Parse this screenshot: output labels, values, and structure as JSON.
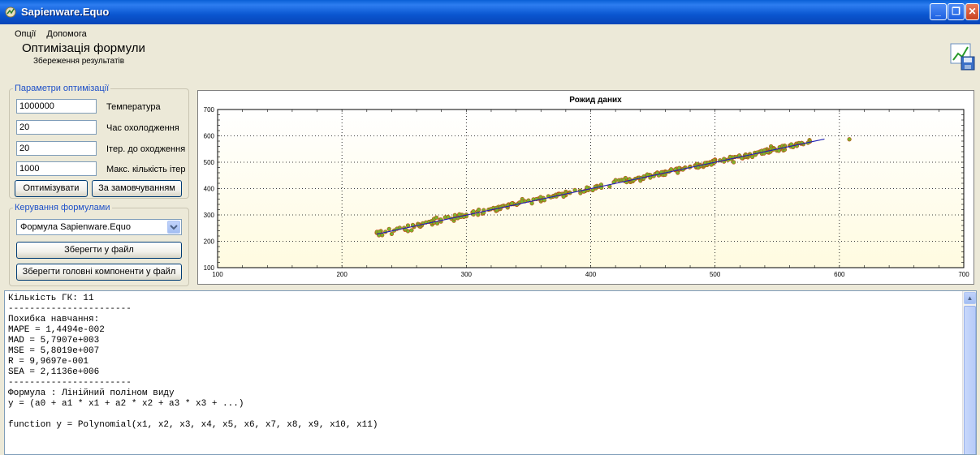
{
  "window": {
    "title": "Sapienware.Equo",
    "minimize": "_",
    "maximize": "❐",
    "close": "✕"
  },
  "menu": [
    "Опції",
    "Допомога"
  ],
  "header": {
    "title": "Оптимізація формули",
    "subtitle": "Збереження результатів",
    "icon": "chart-save-icon"
  },
  "params": {
    "legend": "Параметри оптимізації",
    "fields": [
      {
        "value": "1000000",
        "label": "Температура"
      },
      {
        "value": "20",
        "label": "Час охолодження"
      },
      {
        "value": "20",
        "label": "Ітер. до оходження"
      },
      {
        "value": "1000",
        "label": "Макс. кількість ітер"
      }
    ],
    "optimize_btn": "Оптимізувати",
    "default_btn": "За замовчуванням"
  },
  "formulas": {
    "legend": "Керування формулами",
    "selected": "Формула Sapienware.Equo",
    "save_btn": "Зберегти у файл",
    "save_pc_btn": "Зберегти головні компоненти у файл"
  },
  "chart_data": {
    "type": "scatter",
    "title": "Рожид даних",
    "xlim": [
      100,
      700
    ],
    "ylim": [
      100,
      700
    ],
    "xticks": [
      100,
      200,
      300,
      400,
      500,
      600,
      700
    ],
    "yticks": [
      100,
      200,
      300,
      400,
      500,
      600,
      700
    ],
    "grid": true,
    "fit_line": {
      "x": [
        228,
        588
      ],
      "y": [
        227,
        588
      ]
    },
    "points_description": "≈300 points clustered along y = x from ~225 to ~580, plus one outlier",
    "points_sample": [
      [
        228,
        232
      ],
      [
        235,
        236
      ],
      [
        242,
        241
      ],
      [
        250,
        251
      ],
      [
        258,
        255
      ],
      [
        265,
        268
      ],
      [
        270,
        274
      ],
      [
        274,
        285
      ],
      [
        279,
        282
      ],
      [
        283,
        291
      ],
      [
        288,
        286
      ],
      [
        292,
        295
      ],
      [
        296,
        300
      ],
      [
        300,
        301
      ],
      [
        305,
        310
      ],
      [
        309,
        313
      ],
      [
        314,
        318
      ],
      [
        318,
        320
      ],
      [
        322,
        325
      ],
      [
        326,
        331
      ],
      [
        330,
        335
      ],
      [
        334,
        340
      ],
      [
        338,
        342
      ],
      [
        342,
        344
      ],
      [
        347,
        352
      ],
      [
        350,
        355
      ],
      [
        354,
        359
      ],
      [
        358,
        362
      ],
      [
        362,
        364
      ],
      [
        366,
        371
      ],
      [
        370,
        372
      ],
      [
        375,
        380
      ],
      [
        380,
        388
      ],
      [
        383,
        385
      ],
      [
        405,
        410
      ],
      [
        420,
        432
      ],
      [
        428,
        440
      ],
      [
        432,
        425
      ],
      [
        438,
        441
      ],
      [
        444,
        446
      ],
      [
        448,
        451
      ],
      [
        452,
        456
      ],
      [
        456,
        455
      ],
      [
        460,
        465
      ],
      [
        464,
        468
      ],
      [
        468,
        470
      ],
      [
        472,
        474
      ],
      [
        476,
        480
      ],
      [
        480,
        483
      ],
      [
        484,
        488
      ],
      [
        488,
        490
      ],
      [
        492,
        495
      ],
      [
        496,
        500
      ],
      [
        500,
        502
      ],
      [
        504,
        507
      ],
      [
        508,
        510
      ],
      [
        512,
        516
      ],
      [
        516,
        520
      ],
      [
        520,
        522
      ],
      [
        524,
        526
      ],
      [
        528,
        531
      ],
      [
        532,
        536
      ],
      [
        536,
        540
      ],
      [
        540,
        541
      ],
      [
        544,
        546
      ],
      [
        548,
        550
      ],
      [
        552,
        556
      ],
      [
        556,
        558
      ],
      [
        560,
        563
      ],
      [
        565,
        566
      ],
      [
        570,
        572
      ],
      [
        576,
        578
      ],
      [
        608,
        587
      ],
      [
        276,
        290
      ],
      [
        290,
        278
      ],
      [
        310,
        320
      ],
      [
        325,
        318
      ],
      [
        345,
        360
      ],
      [
        360,
        352
      ],
      [
        240,
        228
      ],
      [
        262,
        264
      ],
      [
        300,
        295
      ],
      [
        380,
        375
      ],
      [
        440,
        430
      ],
      [
        470,
        460
      ],
      [
        500,
        510
      ],
      [
        530,
        520
      ],
      [
        545,
        560
      ],
      [
        555,
        545
      ],
      [
        515,
        500
      ]
    ]
  },
  "output_lines": [
    "Кількість ГК: 11",
    "-----------------------",
    "Похибка навчання:",
    "MAPE = 1,4494e-002",
    "MAD = 5,7907e+003",
    "MSE = 5,8019e+007",
    "R = 9,9697e-001",
    "SEA = 2,1136e+006",
    "-----------------------",
    "Формула : Лінійний поліном виду",
    "y = (a0 + a1 * x1 + a2 * x2 + a3 * x3 + ...)",
    "",
    "function y = Polynomial(x1, x2, x3, x4, x5, x6, x7, x8, x9, x10, x11)"
  ],
  "colors": {
    "titlebar": "#0a56d0",
    "legend": "#1e50c8",
    "plot_bg_top": "#ffffff",
    "plot_bg_bottom": "#fffbe0",
    "point_fill": "#7ab32e",
    "point_edge": "#c2410c",
    "fit_line": "#1f1fb4"
  }
}
